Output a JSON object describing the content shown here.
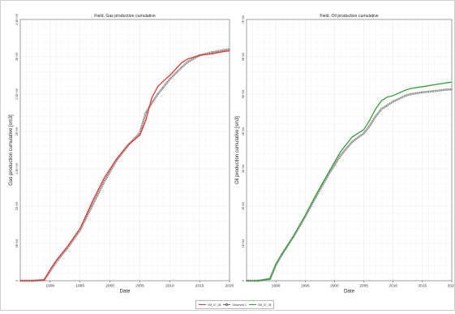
{
  "colors": {
    "gas_sim": "#e8352f",
    "oil_sim": "#34a13a",
    "observed": "#6a6a6a",
    "grid": "#ebebeb"
  },
  "legend": {
    "items": [
      {
        "label": "VM_07_08",
        "color": "#e8352f",
        "marker": "line"
      },
      {
        "label": "Observed 1",
        "color": "#6a6a6a",
        "marker": "circle"
      },
      {
        "label": "VM_07_08",
        "color": "#34a13a",
        "marker": "line"
      }
    ]
  },
  "chart_data": [
    {
      "type": "line",
      "title": "Field. Gas production cumulative",
      "xlabel": "Date",
      "ylabel": "Gas production cumulative [sm3]",
      "xlim": [
        1985,
        2020
      ],
      "ylim": [
        0,
        3500000000.0
      ],
      "x_ticks": [
        "1990",
        "1995",
        "2000",
        "2005",
        "2010",
        "2015",
        "2020"
      ],
      "y_ticks": [
        "0",
        "5E+08",
        "1E+09",
        "1.5E+09",
        "2E+09",
        "2.5E+09",
        "3E+09",
        "3.5E+09"
      ],
      "grid": true,
      "series": [
        {
          "name": "VM_07_08",
          "color": "#e8352f",
          "x": [
            1985,
            1987,
            1989,
            1990,
            1991,
            1993,
            1995,
            1997,
            1999,
            2001,
            2003,
            2005,
            2006,
            2007,
            2008,
            2009,
            2010,
            2012,
            2013,
            2015,
            2017,
            2019,
            2020
          ],
          "y": [
            0,
            0,
            10000000.0,
            150000000.0,
            270000000.0,
            470000000.0,
            700000000.0,
            1050000000.0,
            1370000000.0,
            1620000000.0,
            1820000000.0,
            1950000000.0,
            2150000000.0,
            2450000000.0,
            2600000000.0,
            2680000000.0,
            2750000000.0,
            2920000000.0,
            2970000000.0,
            3020000000.0,
            3040000000.0,
            3070000000.0,
            3080000000.0
          ]
        },
        {
          "name": "Observed 1",
          "color": "#6a6a6a",
          "x": [
            1985,
            1987,
            1989,
            1990,
            1991,
            1993,
            1995,
            1997,
            1999,
            2001,
            2003,
            2005,
            2006,
            2007,
            2008,
            2009,
            2010,
            2012,
            2013,
            2015,
            2017,
            2019,
            2020
          ],
          "y": [
            0,
            0,
            10000000.0,
            130000000.0,
            250000000.0,
            450000000.0,
            680000000.0,
            1000000000.0,
            1320000000.0,
            1600000000.0,
            1810000000.0,
            1980000000.0,
            2250000000.0,
            2380000000.0,
            2500000000.0,
            2600000000.0,
            2700000000.0,
            2860000000.0,
            2930000000.0,
            3020000000.0,
            3060000000.0,
            3090000000.0,
            3100000000.0
          ]
        }
      ]
    },
    {
      "type": "line",
      "title": "Field. Oil production cumulative",
      "xlabel": "Date",
      "ylabel": "Oil production cumulative [sm3]",
      "xlim": [
        1985,
        2020
      ],
      "ylim": [
        0,
        7000000.0
      ],
      "x_ticks": [
        "1990",
        "1995",
        "2000",
        "2005",
        "2010",
        "2015",
        "2020"
      ],
      "y_ticks": [
        "0",
        "1E+06",
        "2E+06",
        "3E+06",
        "4E+06",
        "5E+06",
        "6E+06",
        "7E+06"
      ],
      "grid": true,
      "series": [
        {
          "name": "VM_07_08",
          "color": "#34a13a",
          "x": [
            1985,
            1987,
            1989,
            1990,
            1991,
            1993,
            1995,
            1997,
            1999,
            2001,
            2003,
            2005,
            2006,
            2007,
            2008,
            2009,
            2010,
            2012,
            2013,
            2015,
            2017,
            2019,
            2020
          ],
          "y": [
            0,
            0,
            50000.0,
            450000.0,
            700000.0,
            1200000.0,
            1750000.0,
            2350000.0,
            2900000.0,
            3450000.0,
            3850000.0,
            4050000.0,
            4300000.0,
            4600000.0,
            4820000.0,
            4920000.0,
            4960000.0,
            5100000.0,
            5150000.0,
            5200000.0,
            5250000.0,
            5300000.0,
            5320000.0
          ]
        },
        {
          "name": "Observed 1",
          "color": "#6a6a6a",
          "x": [
            1985,
            1987,
            1989,
            1990,
            1991,
            1993,
            1995,
            1997,
            1999,
            2001,
            2003,
            2005,
            2006,
            2007,
            2008,
            2009,
            2010,
            2012,
            2013,
            2015,
            2017,
            2019,
            2020
          ],
          "y": [
            0,
            0,
            50000.0,
            420000.0,
            700000.0,
            1180000.0,
            1720000.0,
            2300000.0,
            2850000.0,
            3350000.0,
            3720000.0,
            3950000.0,
            4150000.0,
            4400000.0,
            4600000.0,
            4700000.0,
            4800000.0,
            4950000.0,
            5000000.0,
            5050000.0,
            5080000.0,
            5120000.0,
            5130000.0
          ]
        }
      ]
    }
  ]
}
